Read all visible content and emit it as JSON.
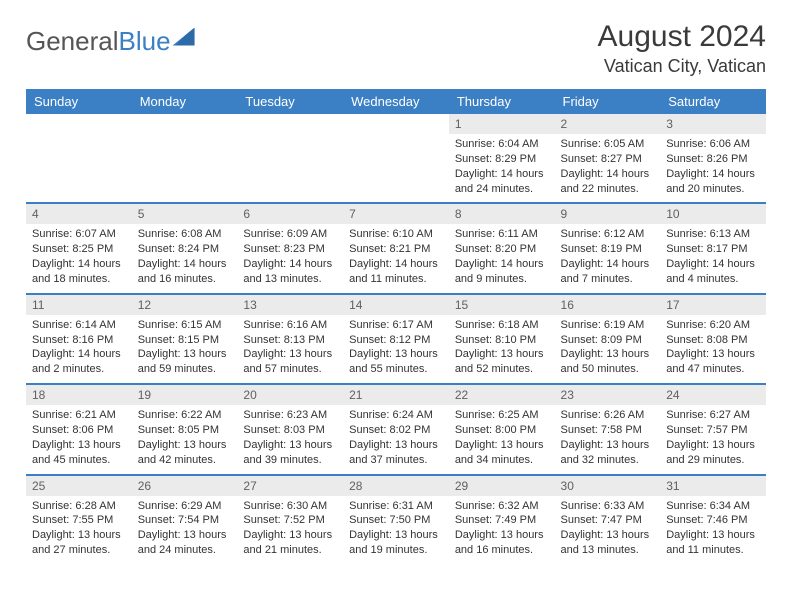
{
  "logo": {
    "part1": "General",
    "part2": "Blue"
  },
  "title": "August 2024",
  "location": "Vatican City, Vatican",
  "colors": {
    "header_bg": "#3b7fc4",
    "header_text": "#ffffff",
    "daynum_bg": "#ebebeb",
    "daynum_text": "#606060",
    "border": "#3b7fc4",
    "body_text": "#333333",
    "page_bg": "#ffffff"
  },
  "weekdays": [
    "Sunday",
    "Monday",
    "Tuesday",
    "Wednesday",
    "Thursday",
    "Friday",
    "Saturday"
  ],
  "weeks": [
    [
      null,
      null,
      null,
      null,
      {
        "n": "1",
        "sr": "Sunrise: 6:04 AM",
        "ss": "Sunset: 8:29 PM",
        "dl": "Daylight: 14 hours and 24 minutes."
      },
      {
        "n": "2",
        "sr": "Sunrise: 6:05 AM",
        "ss": "Sunset: 8:27 PM",
        "dl": "Daylight: 14 hours and 22 minutes."
      },
      {
        "n": "3",
        "sr": "Sunrise: 6:06 AM",
        "ss": "Sunset: 8:26 PM",
        "dl": "Daylight: 14 hours and 20 minutes."
      }
    ],
    [
      {
        "n": "4",
        "sr": "Sunrise: 6:07 AM",
        "ss": "Sunset: 8:25 PM",
        "dl": "Daylight: 14 hours and 18 minutes."
      },
      {
        "n": "5",
        "sr": "Sunrise: 6:08 AM",
        "ss": "Sunset: 8:24 PM",
        "dl": "Daylight: 14 hours and 16 minutes."
      },
      {
        "n": "6",
        "sr": "Sunrise: 6:09 AM",
        "ss": "Sunset: 8:23 PM",
        "dl": "Daylight: 14 hours and 13 minutes."
      },
      {
        "n": "7",
        "sr": "Sunrise: 6:10 AM",
        "ss": "Sunset: 8:21 PM",
        "dl": "Daylight: 14 hours and 11 minutes."
      },
      {
        "n": "8",
        "sr": "Sunrise: 6:11 AM",
        "ss": "Sunset: 8:20 PM",
        "dl": "Daylight: 14 hours and 9 minutes."
      },
      {
        "n": "9",
        "sr": "Sunrise: 6:12 AM",
        "ss": "Sunset: 8:19 PM",
        "dl": "Daylight: 14 hours and 7 minutes."
      },
      {
        "n": "10",
        "sr": "Sunrise: 6:13 AM",
        "ss": "Sunset: 8:17 PM",
        "dl": "Daylight: 14 hours and 4 minutes."
      }
    ],
    [
      {
        "n": "11",
        "sr": "Sunrise: 6:14 AM",
        "ss": "Sunset: 8:16 PM",
        "dl": "Daylight: 14 hours and 2 minutes."
      },
      {
        "n": "12",
        "sr": "Sunrise: 6:15 AM",
        "ss": "Sunset: 8:15 PM",
        "dl": "Daylight: 13 hours and 59 minutes."
      },
      {
        "n": "13",
        "sr": "Sunrise: 6:16 AM",
        "ss": "Sunset: 8:13 PM",
        "dl": "Daylight: 13 hours and 57 minutes."
      },
      {
        "n": "14",
        "sr": "Sunrise: 6:17 AM",
        "ss": "Sunset: 8:12 PM",
        "dl": "Daylight: 13 hours and 55 minutes."
      },
      {
        "n": "15",
        "sr": "Sunrise: 6:18 AM",
        "ss": "Sunset: 8:10 PM",
        "dl": "Daylight: 13 hours and 52 minutes."
      },
      {
        "n": "16",
        "sr": "Sunrise: 6:19 AM",
        "ss": "Sunset: 8:09 PM",
        "dl": "Daylight: 13 hours and 50 minutes."
      },
      {
        "n": "17",
        "sr": "Sunrise: 6:20 AM",
        "ss": "Sunset: 8:08 PM",
        "dl": "Daylight: 13 hours and 47 minutes."
      }
    ],
    [
      {
        "n": "18",
        "sr": "Sunrise: 6:21 AM",
        "ss": "Sunset: 8:06 PM",
        "dl": "Daylight: 13 hours and 45 minutes."
      },
      {
        "n": "19",
        "sr": "Sunrise: 6:22 AM",
        "ss": "Sunset: 8:05 PM",
        "dl": "Daylight: 13 hours and 42 minutes."
      },
      {
        "n": "20",
        "sr": "Sunrise: 6:23 AM",
        "ss": "Sunset: 8:03 PM",
        "dl": "Daylight: 13 hours and 39 minutes."
      },
      {
        "n": "21",
        "sr": "Sunrise: 6:24 AM",
        "ss": "Sunset: 8:02 PM",
        "dl": "Daylight: 13 hours and 37 minutes."
      },
      {
        "n": "22",
        "sr": "Sunrise: 6:25 AM",
        "ss": "Sunset: 8:00 PM",
        "dl": "Daylight: 13 hours and 34 minutes."
      },
      {
        "n": "23",
        "sr": "Sunrise: 6:26 AM",
        "ss": "Sunset: 7:58 PM",
        "dl": "Daylight: 13 hours and 32 minutes."
      },
      {
        "n": "24",
        "sr": "Sunrise: 6:27 AM",
        "ss": "Sunset: 7:57 PM",
        "dl": "Daylight: 13 hours and 29 minutes."
      }
    ],
    [
      {
        "n": "25",
        "sr": "Sunrise: 6:28 AM",
        "ss": "Sunset: 7:55 PM",
        "dl": "Daylight: 13 hours and 27 minutes."
      },
      {
        "n": "26",
        "sr": "Sunrise: 6:29 AM",
        "ss": "Sunset: 7:54 PM",
        "dl": "Daylight: 13 hours and 24 minutes."
      },
      {
        "n": "27",
        "sr": "Sunrise: 6:30 AM",
        "ss": "Sunset: 7:52 PM",
        "dl": "Daylight: 13 hours and 21 minutes."
      },
      {
        "n": "28",
        "sr": "Sunrise: 6:31 AM",
        "ss": "Sunset: 7:50 PM",
        "dl": "Daylight: 13 hours and 19 minutes."
      },
      {
        "n": "29",
        "sr": "Sunrise: 6:32 AM",
        "ss": "Sunset: 7:49 PM",
        "dl": "Daylight: 13 hours and 16 minutes."
      },
      {
        "n": "30",
        "sr": "Sunrise: 6:33 AM",
        "ss": "Sunset: 7:47 PM",
        "dl": "Daylight: 13 hours and 13 minutes."
      },
      {
        "n": "31",
        "sr": "Sunrise: 6:34 AM",
        "ss": "Sunset: 7:46 PM",
        "dl": "Daylight: 13 hours and 11 minutes."
      }
    ]
  ]
}
